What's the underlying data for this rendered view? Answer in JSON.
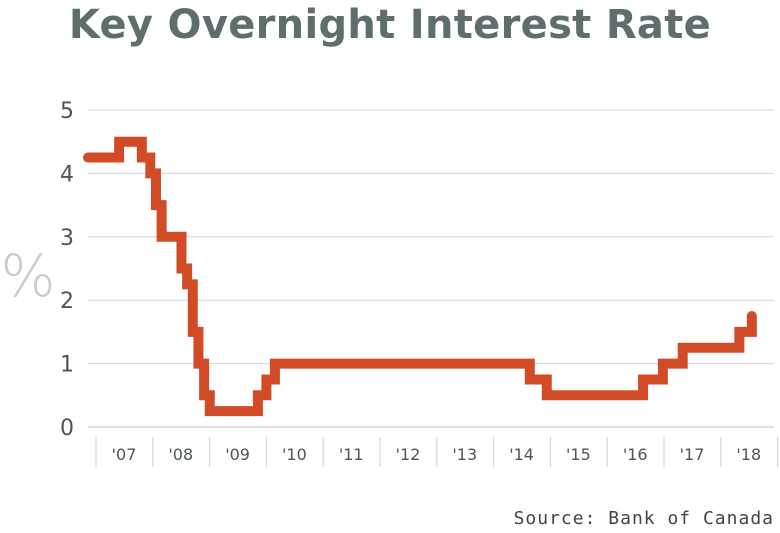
{
  "chart_data": {
    "type": "line",
    "title": "Key Overnight Interest Rate",
    "ylabel": "%",
    "xlabel": "",
    "source": "Source: Bank of Canada",
    "y_ticks": [
      "0",
      "1",
      "2",
      "3",
      "4",
      "5"
    ],
    "x_ticks": [
      "'07",
      "'08",
      "'09",
      "'10",
      "'11",
      "'12",
      "'13",
      "'14",
      "'15",
      "'16",
      "'17",
      "'18"
    ],
    "xlim": [
      2007.0,
      2018.9
    ],
    "ylim": [
      0,
      5
    ],
    "step": true,
    "grid": true,
    "line_color": "#d14b26",
    "series": [
      {
        "x": [
          2007.0,
          2007.55,
          2007.95,
          2008.1,
          2008.2,
          2008.3,
          2008.65,
          2008.75,
          2008.85,
          2008.95,
          2009.05,
          2009.15,
          2009.3,
          2010.0,
          2010.15,
          2010.3,
          2014.8,
          2015.1,
          2016.8,
          2017.15,
          2017.5,
          2018.0,
          2018.5,
          2018.72
        ],
        "y": [
          4.25,
          4.5,
          4.25,
          4.0,
          3.5,
          3.0,
          2.5,
          2.25,
          1.5,
          1.0,
          0.5,
          0.25,
          0.25,
          0.5,
          0.75,
          1.0,
          0.75,
          0.5,
          0.75,
          1.0,
          1.25,
          1.25,
          1.5,
          1.75
        ]
      }
    ]
  }
}
